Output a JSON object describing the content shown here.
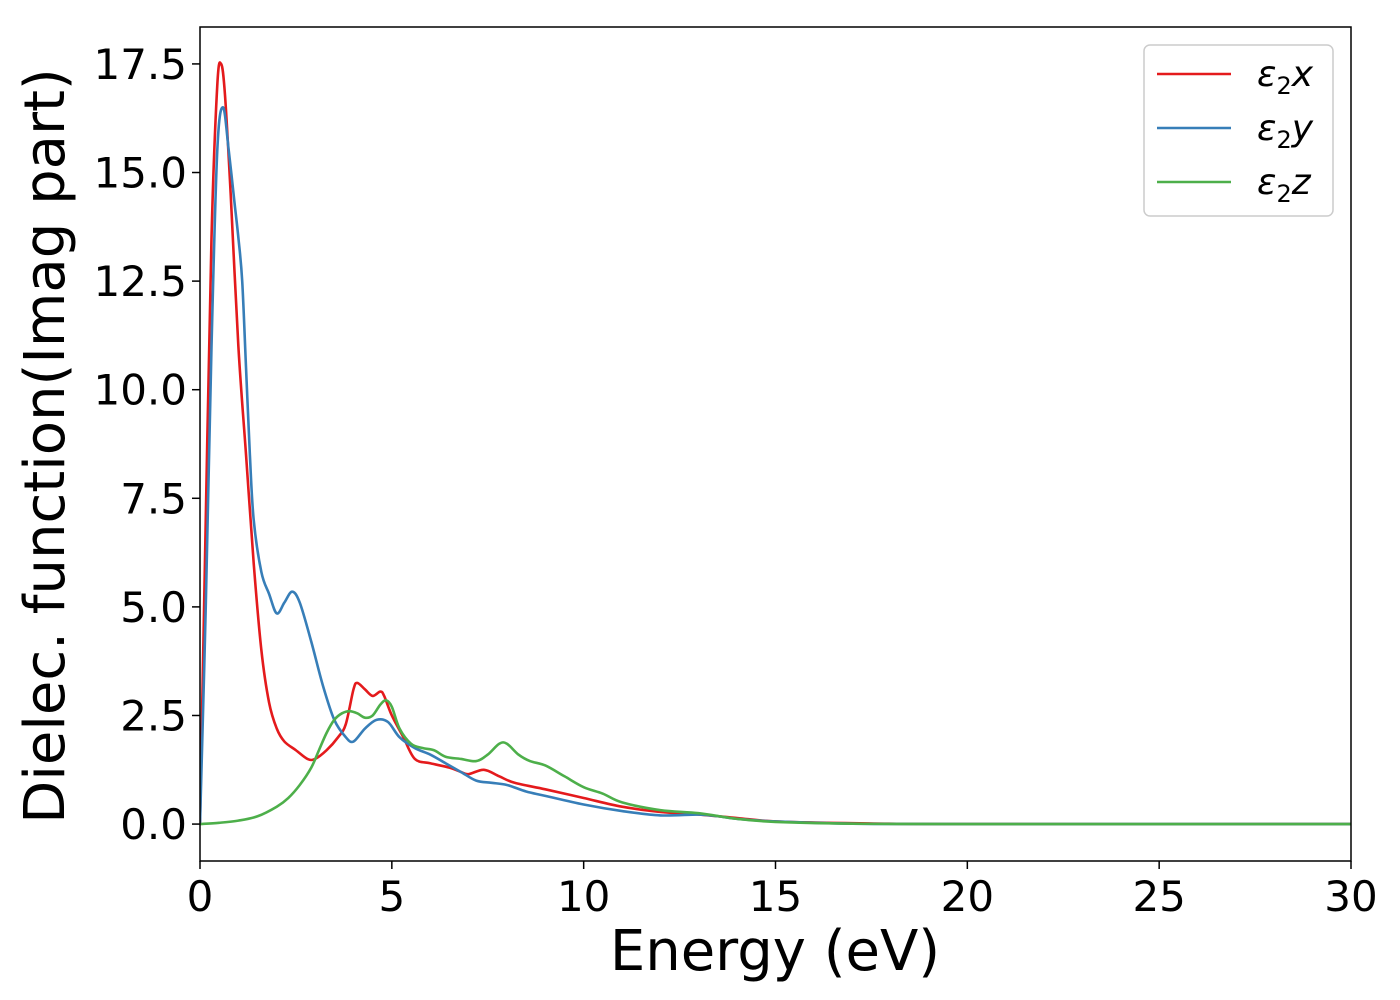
{
  "chart_data": {
    "type": "line",
    "title": "",
    "xlabel": "Energy (eV)",
    "ylabel": "Dielec. function(Imag part)",
    "xlim": [
      0,
      30
    ],
    "ylim": [
      -0.85,
      18.35
    ],
    "xticks": [
      0,
      5,
      10,
      15,
      20,
      25,
      30
    ],
    "xtick_labels": [
      "0",
      "5",
      "10",
      "15",
      "20",
      "25",
      "30"
    ],
    "yticks": [
      0.0,
      2.5,
      5.0,
      7.5,
      10.0,
      12.5,
      15.0,
      17.5
    ],
    "ytick_labels": [
      "0.0",
      "2.5",
      "5.0",
      "7.5",
      "10.0",
      "12.5",
      "15.0",
      "17.5"
    ],
    "grid": false,
    "legend_position": "top-right",
    "series": [
      {
        "name": "ε2x",
        "symbol": "ε",
        "subscript": "2",
        "suffix": "x",
        "color": "#e41a1c",
        "points": [
          [
            0,
            0
          ],
          [
            0.15,
            7
          ],
          [
            0.3,
            13.5
          ],
          [
            0.45,
            17
          ],
          [
            0.55,
            17.5
          ],
          [
            0.65,
            16.8
          ],
          [
            0.8,
            14.5
          ],
          [
            1.0,
            11
          ],
          [
            1.2,
            8.5
          ],
          [
            1.4,
            6
          ],
          [
            1.6,
            4
          ],
          [
            1.8,
            2.8
          ],
          [
            2.0,
            2.2
          ],
          [
            2.2,
            1.9
          ],
          [
            2.5,
            1.7
          ],
          [
            2.8,
            1.5
          ],
          [
            3.0,
            1.5
          ],
          [
            3.3,
            1.7
          ],
          [
            3.6,
            2
          ],
          [
            3.8,
            2.3
          ],
          [
            4.0,
            3.1
          ],
          [
            4.1,
            3.25
          ],
          [
            4.3,
            3.1
          ],
          [
            4.5,
            2.95
          ],
          [
            4.7,
            3.05
          ],
          [
            4.8,
            2.95
          ],
          [
            5.0,
            2.5
          ],
          [
            5.3,
            2
          ],
          [
            5.6,
            1.5
          ],
          [
            6.0,
            1.4
          ],
          [
            6.5,
            1.3
          ],
          [
            6.8,
            1.2
          ],
          [
            7.0,
            1.15
          ],
          [
            7.4,
            1.25
          ],
          [
            7.8,
            1.1
          ],
          [
            8.2,
            0.95
          ],
          [
            9.0,
            0.8
          ],
          [
            10.0,
            0.6
          ],
          [
            11.0,
            0.4
          ],
          [
            12.0,
            0.28
          ],
          [
            13.0,
            0.22
          ],
          [
            14.0,
            0.14
          ],
          [
            15.0,
            0.06
          ],
          [
            17.0,
            0.02
          ],
          [
            20.0,
            0
          ],
          [
            30.0,
            0
          ]
        ]
      },
      {
        "name": "ε2y",
        "symbol": "ε",
        "subscript": "2",
        "suffix": "y",
        "color": "#377eb8",
        "points": [
          [
            0,
            0
          ],
          [
            0.15,
            5
          ],
          [
            0.3,
            11
          ],
          [
            0.45,
            15.5
          ],
          [
            0.6,
            16.5
          ],
          [
            0.75,
            15.5
          ],
          [
            0.9,
            14.3
          ],
          [
            1.0,
            13.5
          ],
          [
            1.1,
            12.5
          ],
          [
            1.2,
            10.5
          ],
          [
            1.3,
            8.5
          ],
          [
            1.4,
            7
          ],
          [
            1.6,
            5.8
          ],
          [
            1.8,
            5.3
          ],
          [
            2.0,
            4.85
          ],
          [
            2.2,
            5.1
          ],
          [
            2.4,
            5.35
          ],
          [
            2.6,
            5.1
          ],
          [
            2.9,
            4.2
          ],
          [
            3.2,
            3.2
          ],
          [
            3.5,
            2.4
          ],
          [
            3.8,
            2.0
          ],
          [
            4.0,
            1.9
          ],
          [
            4.3,
            2.2
          ],
          [
            4.6,
            2.4
          ],
          [
            4.9,
            2.35
          ],
          [
            5.2,
            2.0
          ],
          [
            5.6,
            1.75
          ],
          [
            6.0,
            1.6
          ],
          [
            6.4,
            1.4
          ],
          [
            6.8,
            1.2
          ],
          [
            7.2,
            1.0
          ],
          [
            7.6,
            0.95
          ],
          [
            8.0,
            0.9
          ],
          [
            8.5,
            0.75
          ],
          [
            9.0,
            0.65
          ],
          [
            10.0,
            0.45
          ],
          [
            11.0,
            0.3
          ],
          [
            12.0,
            0.2
          ],
          [
            13.0,
            0.22
          ],
          [
            13.5,
            0.18
          ],
          [
            14.0,
            0.12
          ],
          [
            15.0,
            0.06
          ],
          [
            17.0,
            0.01
          ],
          [
            20.0,
            0
          ],
          [
            30.0,
            0
          ]
        ]
      },
      {
        "name": "ε2z",
        "symbol": "ε",
        "subscript": "2",
        "suffix": "z",
        "color": "#4daf4a",
        "points": [
          [
            0,
            0
          ],
          [
            0.5,
            0.03
          ],
          [
            1.0,
            0.08
          ],
          [
            1.5,
            0.18
          ],
          [
            2.0,
            0.4
          ],
          [
            2.3,
            0.6
          ],
          [
            2.6,
            0.9
          ],
          [
            2.9,
            1.3
          ],
          [
            3.1,
            1.7
          ],
          [
            3.3,
            2.1
          ],
          [
            3.5,
            2.4
          ],
          [
            3.7,
            2.55
          ],
          [
            3.9,
            2.6
          ],
          [
            4.1,
            2.55
          ],
          [
            4.3,
            2.45
          ],
          [
            4.5,
            2.5
          ],
          [
            4.7,
            2.75
          ],
          [
            4.85,
            2.85
          ],
          [
            5.0,
            2.7
          ],
          [
            5.2,
            2.2
          ],
          [
            5.5,
            1.85
          ],
          [
            5.8,
            1.75
          ],
          [
            6.1,
            1.7
          ],
          [
            6.4,
            1.55
          ],
          [
            6.8,
            1.5
          ],
          [
            7.2,
            1.45
          ],
          [
            7.5,
            1.6
          ],
          [
            7.8,
            1.85
          ],
          [
            8.0,
            1.85
          ],
          [
            8.3,
            1.6
          ],
          [
            8.6,
            1.45
          ],
          [
            9.0,
            1.35
          ],
          [
            9.5,
            1.1
          ],
          [
            10.0,
            0.85
          ],
          [
            10.5,
            0.7
          ],
          [
            11.0,
            0.5
          ],
          [
            12.0,
            0.32
          ],
          [
            13.0,
            0.25
          ],
          [
            14.0,
            0.12
          ],
          [
            15.0,
            0.05
          ],
          [
            17.0,
            0.01
          ],
          [
            20.0,
            0
          ],
          [
            30.0,
            0
          ]
        ]
      }
    ]
  }
}
